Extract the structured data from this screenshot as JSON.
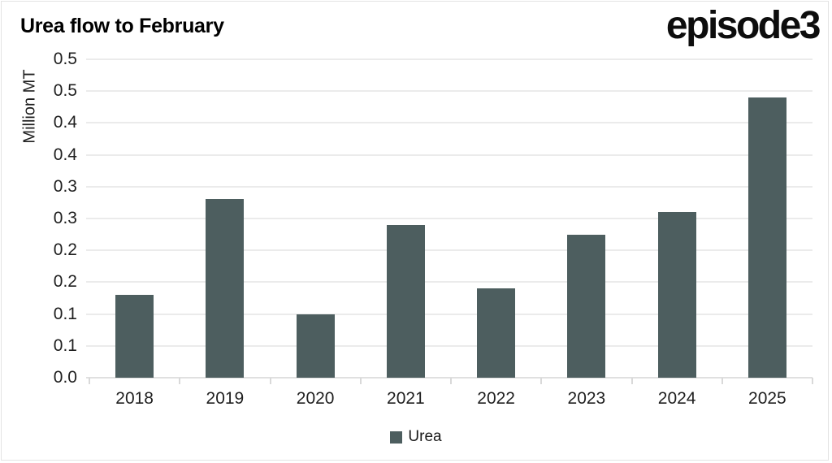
{
  "header": {
    "title": "Urea flow to February",
    "logo": "episode3"
  },
  "chart_data": {
    "type": "bar",
    "title": "Urea flow to February",
    "xlabel": "",
    "ylabel": "Million MT",
    "categories": [
      "2018",
      "2019",
      "2020",
      "2021",
      "2022",
      "2023",
      "2024",
      "2025"
    ],
    "series": [
      {
        "name": "Urea",
        "values": [
          0.13,
          0.28,
          0.1,
          0.24,
          0.14,
          0.225,
          0.26,
          0.44
        ]
      }
    ],
    "ylim": [
      0,
      0.5
    ],
    "ytick_step": 0.05,
    "ytick_labels_bottom_to_top": [
      "0.0",
      "0.1",
      "0.1",
      "0.2",
      "0.2",
      "0.3",
      "0.3",
      "0.4",
      "0.4",
      "0.5",
      "0.5"
    ],
    "grid": "horizontal-only",
    "legend_position": "bottom-center"
  },
  "legend": {
    "items": [
      {
        "label": "Urea",
        "color": "#4d5e5f"
      }
    ]
  },
  "colors": {
    "bar": "#4d5e5f",
    "gridline": "#ebebeb",
    "axis_line": "#e0e0e0",
    "tick": "#d9d9d9",
    "text": "#1f1f1f",
    "title_text": "#000000",
    "background": "#ffffff",
    "frame_border": "#e3e3e3"
  }
}
